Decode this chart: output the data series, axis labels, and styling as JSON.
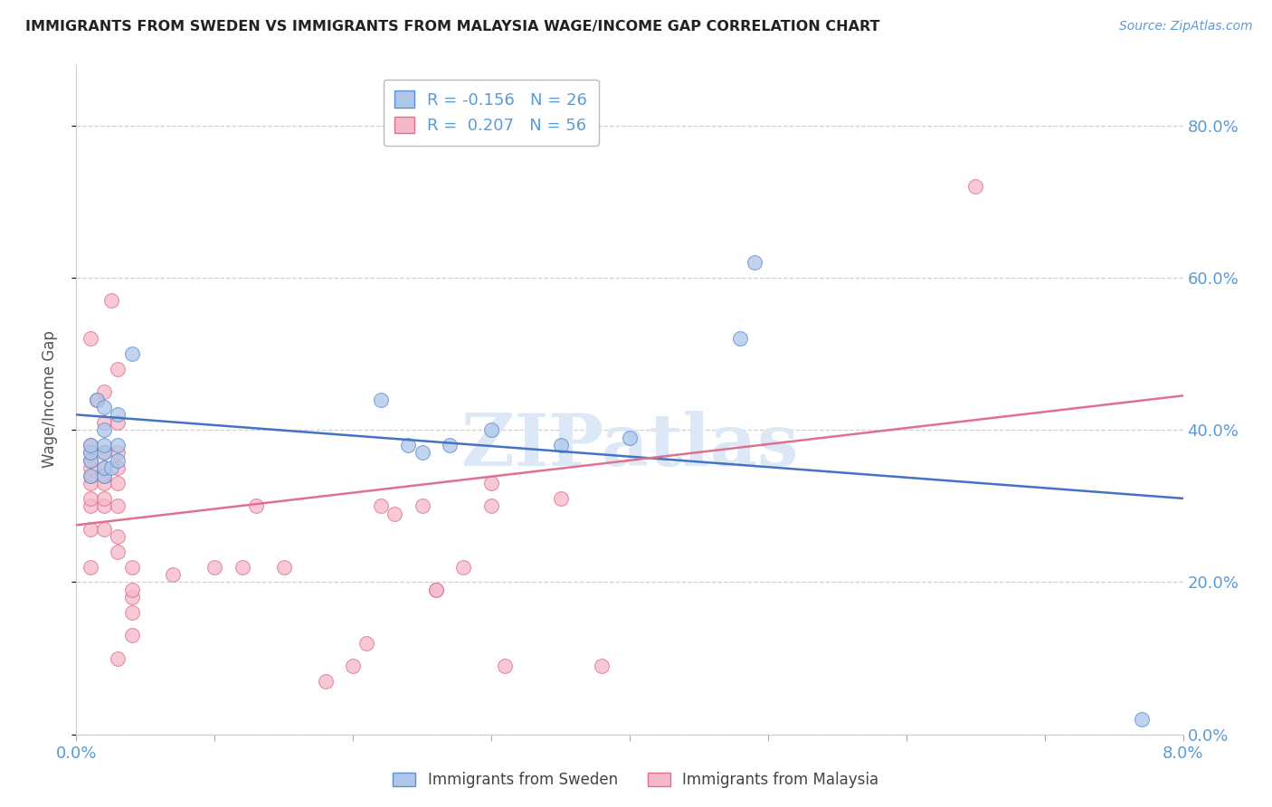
{
  "title": "IMMIGRANTS FROM SWEDEN VS IMMIGRANTS FROM MALAYSIA WAGE/INCOME GAP CORRELATION CHART",
  "source_text": "Source: ZipAtlas.com",
  "ylabel": "Wage/Income Gap",
  "xlim": [
    0.0,
    0.08
  ],
  "ylim": [
    0.0,
    0.88
  ],
  "yticks": [
    0.0,
    0.2,
    0.4,
    0.6,
    0.8
  ],
  "xticks": [
    0.0,
    0.01,
    0.02,
    0.03,
    0.04,
    0.05,
    0.06,
    0.07,
    0.08
  ],
  "xtick_labels": [
    "0.0%",
    "",
    "",
    "",
    "",
    "",
    "",
    "",
    "8.0%"
  ],
  "grid_color": "#d0d0d0",
  "background_color": "#ffffff",
  "sweden_color": "#aec6e8",
  "malaysia_color": "#f5b8c8",
  "sweden_edge_color": "#5b8fd4",
  "malaysia_edge_color": "#e07090",
  "sweden_line_color": "#4472c4",
  "malaysia_line_color": "#e07090",
  "tick_label_color": "#5b9bd5",
  "ylabel_color": "#555555",
  "title_color": "#222222",
  "source_color": "#5b9bd5",
  "watermark_text": "ZIPatlas",
  "watermark_color": "#dce8f5",
  "sweden_R": -0.156,
  "sweden_N": 26,
  "malaysia_R": 0.207,
  "malaysia_N": 56,
  "sweden_x": [
    0.001,
    0.001,
    0.001,
    0.001,
    0.0015,
    0.002,
    0.002,
    0.002,
    0.002,
    0.002,
    0.002,
    0.0025,
    0.003,
    0.003,
    0.003,
    0.004,
    0.022,
    0.024,
    0.025,
    0.027,
    0.03,
    0.035,
    0.04,
    0.048,
    0.049,
    0.077
  ],
  "sweden_y": [
    0.34,
    0.36,
    0.37,
    0.38,
    0.44,
    0.34,
    0.35,
    0.37,
    0.38,
    0.4,
    0.43,
    0.35,
    0.36,
    0.38,
    0.42,
    0.5,
    0.44,
    0.38,
    0.37,
    0.38,
    0.4,
    0.38,
    0.39,
    0.52,
    0.62,
    0.02
  ],
  "malaysia_x": [
    0.001,
    0.001,
    0.001,
    0.001,
    0.001,
    0.001,
    0.001,
    0.001,
    0.001,
    0.001,
    0.001,
    0.0015,
    0.002,
    0.002,
    0.002,
    0.002,
    0.002,
    0.002,
    0.002,
    0.002,
    0.002,
    0.0025,
    0.003,
    0.003,
    0.003,
    0.003,
    0.003,
    0.003,
    0.003,
    0.003,
    0.003,
    0.004,
    0.004,
    0.004,
    0.004,
    0.004,
    0.007,
    0.01,
    0.012,
    0.013,
    0.015,
    0.018,
    0.02,
    0.021,
    0.022,
    0.023,
    0.025,
    0.026,
    0.026,
    0.028,
    0.03,
    0.03,
    0.031,
    0.035,
    0.038,
    0.065
  ],
  "malaysia_y": [
    0.22,
    0.27,
    0.3,
    0.31,
    0.33,
    0.34,
    0.35,
    0.36,
    0.37,
    0.38,
    0.52,
    0.44,
    0.27,
    0.3,
    0.31,
    0.33,
    0.34,
    0.35,
    0.37,
    0.41,
    0.45,
    0.57,
    0.24,
    0.26,
    0.3,
    0.33,
    0.35,
    0.37,
    0.41,
    0.48,
    0.1,
    0.13,
    0.16,
    0.18,
    0.19,
    0.22,
    0.21,
    0.22,
    0.22,
    0.3,
    0.22,
    0.07,
    0.09,
    0.12,
    0.3,
    0.29,
    0.3,
    0.19,
    0.19,
    0.22,
    0.3,
    0.33,
    0.09,
    0.31,
    0.09,
    0.72
  ],
  "marker_size": 130
}
